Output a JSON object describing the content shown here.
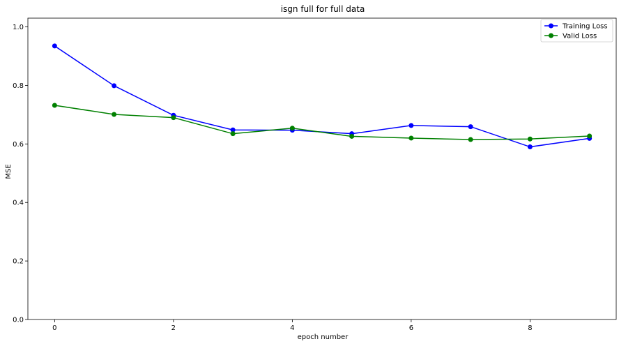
{
  "chart_data": {
    "type": "line",
    "title": "isgn full for full data",
    "xlabel": "epoch number",
    "ylabel": "MSE",
    "xlim": [
      -0.45,
      9.45
    ],
    "ylim": [
      0.0,
      1.03
    ],
    "xticks": [
      0,
      2,
      4,
      6,
      8
    ],
    "yticks": [
      0.0,
      0.2,
      0.4,
      0.6,
      0.8,
      1.0
    ],
    "ytick_labels": [
      "0.0",
      "0.2",
      "0.4",
      "0.6",
      "0.8",
      "1.0"
    ],
    "grid": false,
    "legend_position": "top-right",
    "x": [
      0,
      1,
      2,
      3,
      4,
      5,
      6,
      7,
      8,
      9
    ],
    "series": [
      {
        "name": "Training Loss",
        "color": "#0000ff",
        "marker": "circle",
        "values": [
          0.935,
          0.799,
          0.698,
          0.648,
          0.647,
          0.635,
          0.663,
          0.659,
          0.59,
          0.619
        ]
      },
      {
        "name": "Valid Loss",
        "color": "#008000",
        "marker": "circle",
        "values": [
          0.732,
          0.701,
          0.69,
          0.635,
          0.654,
          0.626,
          0.62,
          0.615,
          0.617,
          0.627
        ]
      }
    ]
  }
}
